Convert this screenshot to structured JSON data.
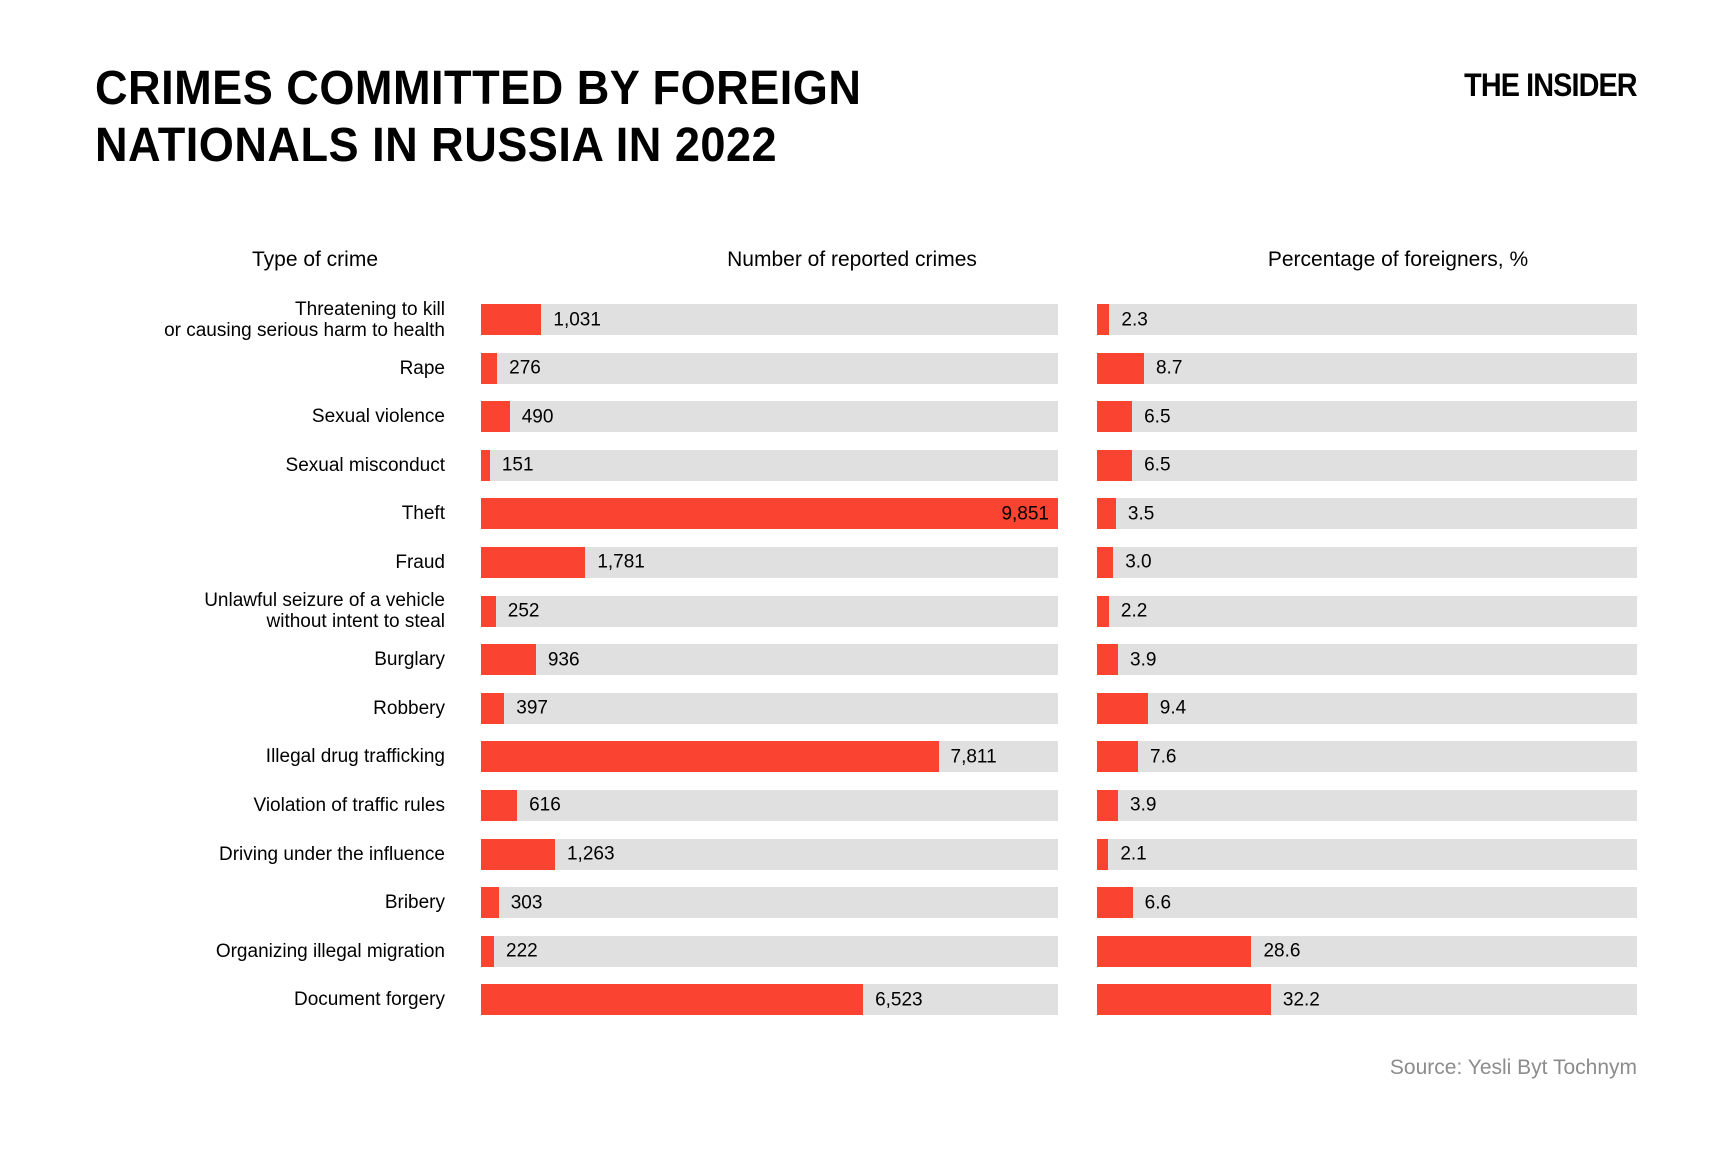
{
  "title": "CRIMES COMMITTED BY FOREIGN\nNATIONALS IN RUSSIA IN 2022",
  "logo": "THE INSIDER",
  "headers": {
    "crime": "Type of crime",
    "number": "Number of reported crimes",
    "percent": "Percentage of foreigners, %"
  },
  "source": "Source: Yesli Byt Tochnym",
  "colors": {
    "bar": "#fb4332",
    "track": "#e0e0e0",
    "source_text": "#8c8c8c",
    "text": "#000000",
    "background": "#ffffff"
  },
  "chart_data": {
    "type": "bar",
    "orientation": "horizontal",
    "title": "Crimes committed by foreign nationals in Russia in 2022",
    "grid": false,
    "legend_position": "none",
    "categories": [
      "Threatening to kill\nor causing serious harm to health",
      "Rape",
      "Sexual violence",
      "Sexual misconduct",
      "Theft",
      "Fraud",
      "Unlawful seizure of a vehicle\nwithout intent to steal",
      "Burglary",
      "Robbery",
      "Illegal drug trafficking",
      "Violation of traffic rules",
      "Driving under the influence",
      "Bribery",
      "Organizing illegal migration",
      "Document forgery"
    ],
    "series": [
      {
        "name": "Number of reported crimes",
        "values": [
          1031,
          276,
          490,
          151,
          9851,
          1781,
          252,
          936,
          397,
          7811,
          616,
          1263,
          303,
          222,
          6523
        ],
        "labels": [
          "1,031",
          "276",
          "490",
          "151",
          "9,851",
          "1,781",
          "252",
          "936",
          "397",
          "7,811",
          "616",
          "1,263",
          "303",
          "222",
          "6,523"
        ],
        "axis_range": [
          0,
          9851
        ]
      },
      {
        "name": "Percentage of foreigners, %",
        "values": [
          2.3,
          8.7,
          6.5,
          6.5,
          3.5,
          3.0,
          2.2,
          3.9,
          9.4,
          7.6,
          3.9,
          2.1,
          6.6,
          28.6,
          32.2
        ],
        "labels": [
          "2.3",
          "8.7",
          "6.5",
          "6.5",
          "3.5",
          "3.0",
          "2.2",
          "3.9",
          "9.4",
          "7.6",
          "3.9",
          "2.1",
          "6.6",
          "28.6",
          "32.2"
        ],
        "axis_range": [
          0,
          100
        ]
      }
    ]
  }
}
